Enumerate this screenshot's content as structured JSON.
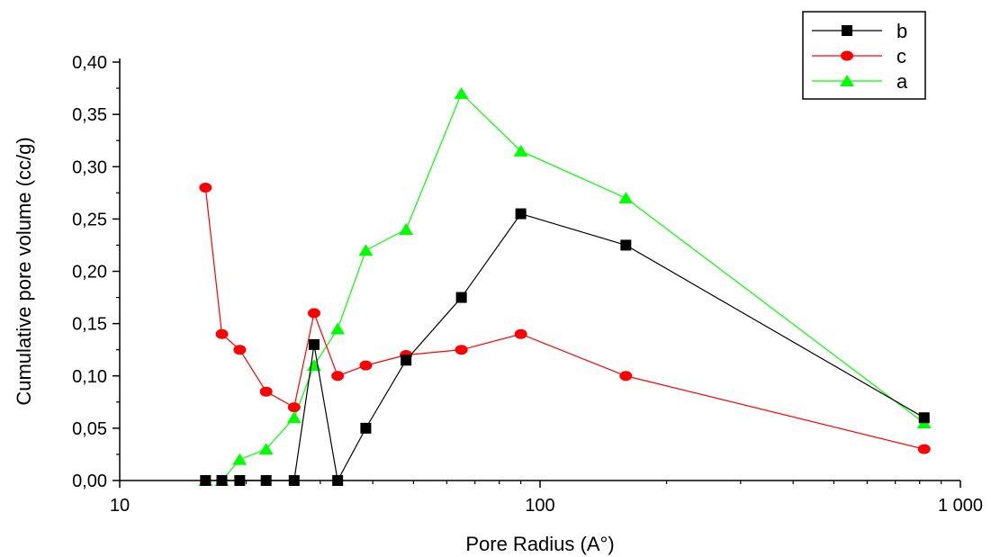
{
  "chart_data": {
    "type": "line",
    "title": "",
    "xlabel": "Pore Radius (A°)",
    "ylabel": "Cumulative pore volume (cc/g)",
    "x_scale": "log",
    "xlim": [
      10,
      1000
    ],
    "ylim": [
      0,
      0.4
    ],
    "x_ticks": [
      {
        "value": 10,
        "label": "10"
      },
      {
        "value": 100,
        "label": "100"
      },
      {
        "value": 1000,
        "label": "1 000"
      }
    ],
    "y_ticks": [
      {
        "value": 0.0,
        "label": "0,00"
      },
      {
        "value": 0.05,
        "label": "0,05"
      },
      {
        "value": 0.1,
        "label": "0,10"
      },
      {
        "value": 0.15,
        "label": "0,15"
      },
      {
        "value": 0.2,
        "label": "0,20"
      },
      {
        "value": 0.25,
        "label": "0,25"
      },
      {
        "value": 0.3,
        "label": "0,30"
      },
      {
        "value": 0.35,
        "label": "0,35"
      },
      {
        "value": 0.4,
        "label": "0,40"
      }
    ],
    "legend_position": "top-right",
    "grid": false,
    "series": [
      {
        "name": "b",
        "color": "#000000",
        "marker": "square",
        "x": [
          16,
          17.5,
          19.3,
          22.3,
          26,
          29,
          33,
          38.5,
          48,
          65,
          90,
          160,
          820
        ],
        "y": [
          0.0,
          0.0,
          0.0,
          0.0,
          0.0,
          0.13,
          0.0,
          0.05,
          0.115,
          0.175,
          0.255,
          0.225,
          0.06
        ]
      },
      {
        "name": "c",
        "color": "#ff0000",
        "marker": "circle",
        "x": [
          16,
          17.5,
          19.3,
          22.3,
          26,
          29,
          33,
          38.5,
          48,
          65,
          90,
          160,
          820
        ],
        "y": [
          0.28,
          0.14,
          0.125,
          0.085,
          0.07,
          0.16,
          0.1,
          0.11,
          0.12,
          0.125,
          0.14,
          0.1,
          0.03
        ]
      },
      {
        "name": "a",
        "color": "#00ff00",
        "marker": "triangle",
        "x": [
          16,
          17.5,
          19.3,
          22.3,
          26,
          29,
          33,
          38.5,
          48,
          65,
          90,
          160,
          820
        ],
        "y": [
          0.0,
          0.0,
          0.02,
          0.03,
          0.06,
          0.11,
          0.145,
          0.22,
          0.24,
          0.37,
          0.315,
          0.27,
          0.055
        ]
      }
    ]
  }
}
